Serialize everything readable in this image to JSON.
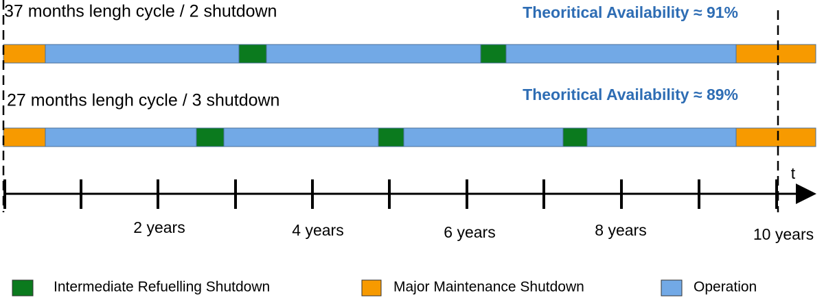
{
  "rows": [
    {
      "title": "37 months lengh cycle / 2 shutdown",
      "availability": "Theoritical Availability ≈ 91%"
    },
    {
      "title": "27 months lengh cycle / 3 shutdown",
      "availability": "Theoritical Availability ≈ 89%"
    }
  ],
  "axis": {
    "variable": "t",
    "labels": [
      "2 years",
      "4 years",
      "6 years",
      "8 years",
      "10 years"
    ]
  },
  "legend": [
    "Intermediate Refuelling Shutdown",
    "Major Maintenance Shutdown",
    "Operation"
  ]
}
